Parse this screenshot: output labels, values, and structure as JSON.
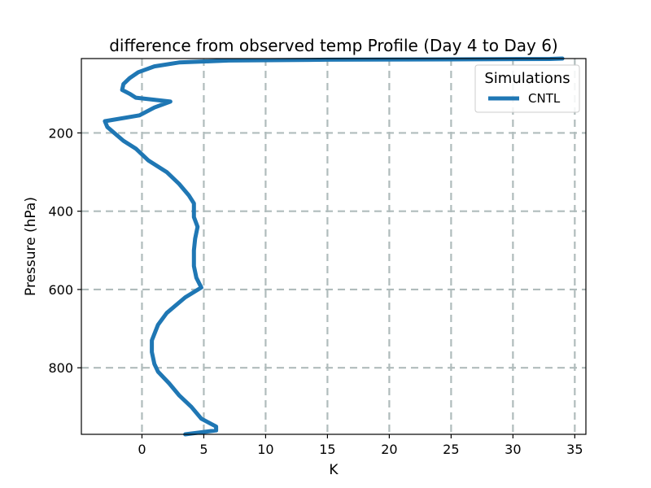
{
  "chart_data": {
    "type": "line",
    "title": "difference from observed temp Profile (Day 4 to Day 6)",
    "xlabel": "K",
    "ylabel": "Pressure (hPa)",
    "xlim": [
      -4.9,
      35.9
    ],
    "ylim": [
      970,
      10
    ],
    "y_inverted": true,
    "grid": true,
    "xticks": [
      0,
      5,
      10,
      15,
      20,
      25,
      30,
      35
    ],
    "yticks": [
      200,
      400,
      600,
      800
    ],
    "legend": {
      "title": "Simulations",
      "placement": "top-right"
    },
    "series": [
      {
        "name": "CNTL",
        "color": "#1f77b4",
        "points": [
          [
            34.0,
            10
          ],
          [
            33.0,
            11
          ],
          [
            25.0,
            12
          ],
          [
            15.0,
            13
          ],
          [
            7.0,
            15
          ],
          [
            3.0,
            20
          ],
          [
            1.0,
            30
          ],
          [
            -0.3,
            45
          ],
          [
            -1.0,
            60
          ],
          [
            -1.5,
            75
          ],
          [
            -1.6,
            90
          ],
          [
            -1.0,
            100
          ],
          [
            -0.5,
            110
          ],
          [
            2.3,
            120
          ],
          [
            1.0,
            135
          ],
          [
            -0.2,
            155
          ],
          [
            -3.0,
            170
          ],
          [
            -2.8,
            185
          ],
          [
            -1.5,
            220
          ],
          [
            -0.5,
            240
          ],
          [
            0.5,
            270
          ],
          [
            2.0,
            300
          ],
          [
            3.0,
            330
          ],
          [
            3.8,
            360
          ],
          [
            4.2,
            380
          ],
          [
            4.2,
            415
          ],
          [
            4.5,
            440
          ],
          [
            4.3,
            470
          ],
          [
            4.2,
            500
          ],
          [
            4.2,
            540
          ],
          [
            4.4,
            570
          ],
          [
            4.8,
            595
          ],
          [
            3.5,
            620
          ],
          [
            2.0,
            660
          ],
          [
            1.3,
            690
          ],
          [
            0.8,
            730
          ],
          [
            0.8,
            760
          ],
          [
            1.0,
            790
          ],
          [
            1.3,
            810
          ],
          [
            2.2,
            840
          ],
          [
            3.0,
            870
          ],
          [
            4.0,
            900
          ],
          [
            4.8,
            930
          ],
          [
            6.0,
            950
          ],
          [
            6.0,
            960
          ],
          [
            3.5,
            970
          ]
        ]
      }
    ]
  }
}
